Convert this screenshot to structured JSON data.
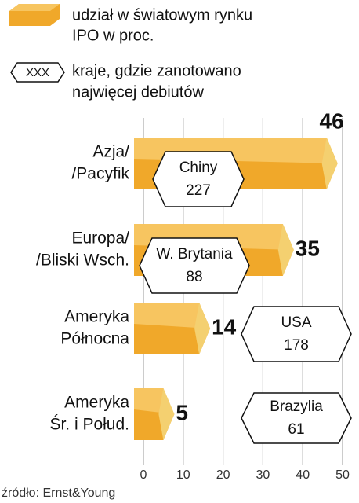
{
  "chart_data": {
    "type": "bar",
    "orientation": "horizontal",
    "legend": {
      "bar_label": [
        "udział w światowym rynku",
        "IPO w proc."
      ],
      "hex_symbol": "XXX",
      "hex_label": [
        "kraje, gdzie zanotowano",
        "najwięcej debiutów"
      ]
    },
    "categories": [
      [
        "Azja/",
        "/Pacyfik"
      ],
      [
        "Europa/",
        "/Bliski Wsch."
      ],
      [
        "Ameryka",
        "Północna"
      ],
      [
        "Ameryka",
        "Śr. i Połud."
      ]
    ],
    "values": [
      46,
      35,
      14,
      5
    ],
    "color": "#f0a82a",
    "countries": [
      {
        "name": "Chiny",
        "count": 227
      },
      {
        "name": "W. Brytania",
        "count": 88
      },
      {
        "name": "USA",
        "count": 178
      },
      {
        "name": "Brazylia",
        "count": 61
      }
    ],
    "xlim": [
      0,
      50
    ],
    "xticks": [
      0,
      10,
      20,
      30,
      40,
      50
    ],
    "grid": true,
    "source": "źródło: Ernst&Young"
  }
}
